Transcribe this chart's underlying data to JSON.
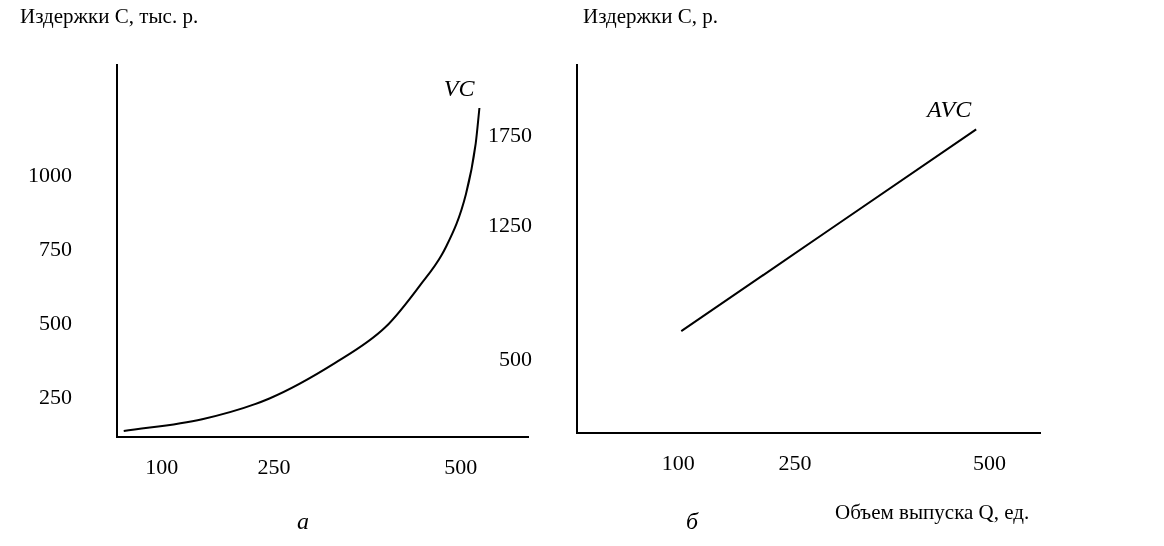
{
  "chart_data": [
    {
      "type": "line",
      "ylabel": "Издержки C, тыс. р.",
      "annotations": [
        "а"
      ],
      "series": [
        {
          "name": "VC",
          "color": "#000000",
          "x": [
            49,
            154,
            244,
            332,
            399,
            445,
            480,
            507,
            520,
            525
          ],
          "values": [
            140,
            180,
            250,
            370,
            490,
            630,
            760,
            940,
            1110,
            1230
          ]
        }
      ],
      "xlim": [
        40,
        590
      ],
      "xticks": [
        100,
        250,
        500
      ],
      "ylim": [
        120,
        1375
      ],
      "yticks": [
        250,
        500,
        750,
        1000
      ],
      "grid": false,
      "legend": false,
      "marker": "none",
      "line_style": "solid"
    },
    {
      "type": "line",
      "ylabel": "Издержки C, р.",
      "xlabel": "Объем выпуска Q, ед.",
      "annotations": [
        "б"
      ],
      "series": [
        {
          "name": "AVC",
          "color": "#000000",
          "x": [
            104,
            483
          ],
          "values": [
            660,
            1790
          ]
        }
      ],
      "xlim": [
        -30,
        565
      ],
      "xticks": [
        100,
        250,
        500
      ],
      "ylim": [
        90,
        2150
      ],
      "yticks": [
        500,
        1250,
        1750
      ],
      "grid": false,
      "legend": false,
      "marker": "none",
      "line_style": "solid"
    }
  ]
}
